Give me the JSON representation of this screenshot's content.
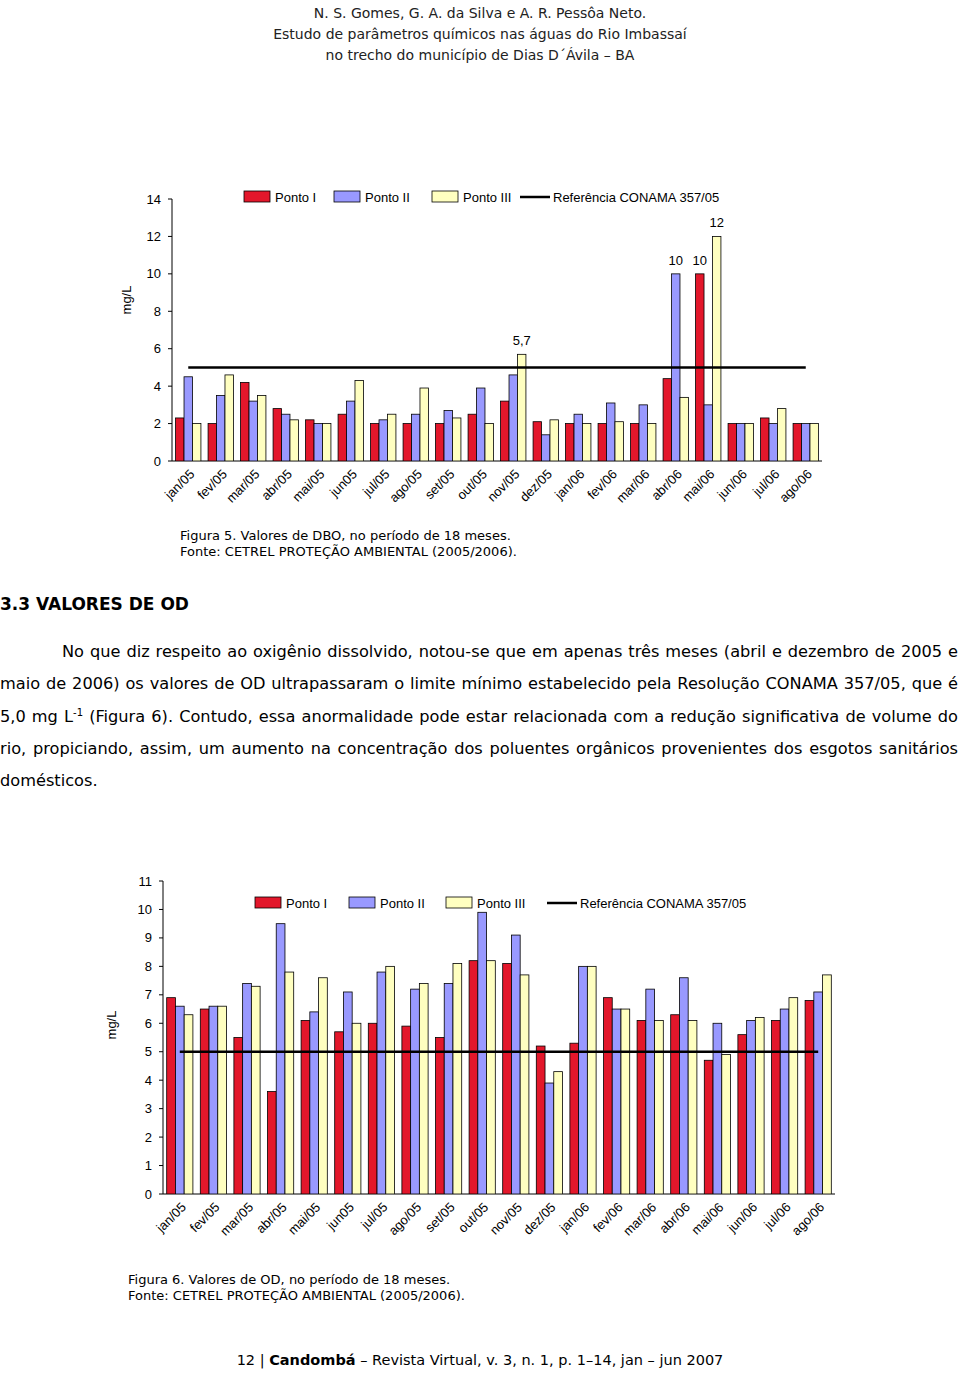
{
  "header": {
    "authors": "N. S. Gomes, G. A. da Silva e A. R. Pessôa Neto.",
    "title_line1": "Estudo de parâmetros químicos nas águas do Rio Imbassaí",
    "title_line2": "no trecho do município de Dias D´Ávila – BA"
  },
  "chart_data": [
    {
      "type": "bar",
      "title": "Figura 5. Valores de DBO, no período de 18 meses.",
      "subtitle": "Fonte: CETREL PROTEÇÃO AMBIENTAL (2005/2006).",
      "ylabel": "mg/L",
      "categories": [
        "jan/05",
        "fev/05",
        "mar/05",
        "abr/05",
        "mai/05",
        "jun05",
        "jul/05",
        "ago/05",
        "set/05",
        "out/05",
        "nov/05",
        "dez/05",
        "jan/06",
        "fev/06",
        "mar/06",
        "abr/06",
        "mai/06",
        "jun/06",
        "jul/06",
        "ago/06"
      ],
      "series": [
        {
          "name": "Ponto I",
          "color": "#e3172b",
          "values": [
            2.3,
            2.0,
            4.2,
            2.8,
            2.2,
            2.5,
            2.0,
            2.0,
            2.0,
            2.5,
            3.2,
            2.1,
            2.0,
            2.0,
            2.0,
            4.4,
            10,
            2.0,
            2.3,
            2.0
          ],
          "value_labels": [
            null,
            null,
            null,
            null,
            null,
            null,
            null,
            null,
            null,
            null,
            null,
            null,
            null,
            null,
            null,
            null,
            "10",
            null,
            null,
            null
          ]
        },
        {
          "name": "Ponto II",
          "color": "#9999ff",
          "values": [
            4.5,
            3.5,
            3.2,
            2.5,
            2.0,
            3.2,
            2.2,
            2.5,
            2.7,
            3.9,
            4.6,
            1.4,
            2.5,
            3.1,
            3.0,
            10,
            3.0,
            2.0,
            2.0,
            2.0
          ],
          "value_labels": [
            null,
            null,
            null,
            null,
            null,
            null,
            null,
            null,
            null,
            null,
            null,
            null,
            null,
            null,
            null,
            "10",
            null,
            null,
            null,
            null
          ]
        },
        {
          "name": "Ponto III",
          "color": "#ffffc0",
          "values": [
            2.0,
            4.6,
            3.5,
            2.2,
            2.0,
            4.3,
            2.5,
            3.9,
            2.3,
            2.0,
            5.7,
            2.2,
            2.0,
            2.1,
            2.0,
            3.4,
            12,
            2.0,
            2.8,
            2.0
          ],
          "value_labels": [
            null,
            null,
            null,
            null,
            null,
            null,
            null,
            null,
            null,
            null,
            "5,7",
            null,
            null,
            null,
            null,
            null,
            "12",
            null,
            null,
            null
          ]
        },
        {
          "name": "Referência CONAMA 357/05",
          "color": "#000000",
          "type": "line",
          "values": [
            5,
            5,
            5,
            5,
            5,
            5,
            5,
            5,
            5,
            5,
            5,
            5,
            5,
            5,
            5,
            5,
            5,
            5,
            5,
            5
          ]
        }
      ],
      "ylim": [
        0,
        14
      ],
      "yticks": [
        0,
        2,
        4,
        6,
        8,
        10,
        12,
        14
      ]
    },
    {
      "type": "bar",
      "title": "Figura 6. Valores de OD, no período de 18 meses.",
      "subtitle": "Fonte: CETREL PROTEÇÃO AMBIENTAL (2005/2006).",
      "ylabel": "mg/L",
      "categories": [
        "jan/05",
        "fev/05",
        "mar/05",
        "abr/05",
        "mai/05",
        "jun05",
        "jul/05",
        "ago/05",
        "set/05",
        "out/05",
        "nov/05",
        "dez/05",
        "jan/06",
        "fev/06",
        "mar/06",
        "abr/06",
        "mai/06",
        "jun/06",
        "jul/06",
        "ago/06"
      ],
      "series": [
        {
          "name": "Ponto I",
          "color": "#e3172b",
          "values": [
            6.9,
            6.5,
            5.5,
            3.6,
            6.1,
            5.7,
            6.0,
            5.9,
            5.5,
            8.2,
            8.1,
            5.2,
            5.3,
            6.9,
            6.1,
            6.3,
            4.7,
            5.6,
            6.1,
            6.8
          ]
        },
        {
          "name": "Ponto II",
          "color": "#9999ff",
          "values": [
            6.6,
            6.6,
            7.4,
            9.5,
            6.4,
            7.1,
            7.8,
            7.2,
            7.4,
            9.9,
            9.1,
            3.9,
            8.0,
            6.5,
            7.2,
            7.6,
            6.0,
            6.1,
            6.5,
            7.1
          ]
        },
        {
          "name": "Ponto III",
          "color": "#ffffc0",
          "values": [
            6.3,
            6.6,
            7.3,
            7.8,
            7.6,
            6.0,
            8.0,
            7.4,
            8.1,
            8.2,
            7.7,
            4.3,
            8.0,
            6.5,
            6.1,
            6.1,
            4.9,
            6.2,
            6.9,
            7.7
          ]
        },
        {
          "name": "Referência CONAMA 357/05",
          "color": "#000000",
          "type": "line",
          "values": [
            5,
            5,
            5,
            5,
            5,
            5,
            5,
            5,
            5,
            5,
            5,
            5,
            5,
            5,
            5,
            5,
            5,
            5,
            5,
            5
          ]
        }
      ],
      "ylim": [
        0,
        11
      ],
      "yticks": [
        0,
        1,
        2,
        3,
        4,
        5,
        6,
        7,
        8,
        9,
        10,
        11
      ]
    }
  ],
  "section": {
    "heading": "3.3 VALORES DE OD",
    "paragraph": {
      "text_before": "No que diz respeito ao oxigênio dissolvido, notou-se que em apenas três meses (abril e dezembro de 2005 e maio de 2006) os valores de OD ultrapassaram o limite mínimo estabelecido pela Resolução CONAMA 357/05, que é 5,0 mg L",
      "superscript": "-1",
      "text_after": " (Figura 6). Contudo, essa anormalidade pode estar relacionada com a redução significativa de volume do rio, propiciando, assim, um aumento na concentração dos poluentes orgânicos provenientes dos esgotos sanitários domésticos."
    }
  },
  "footer": {
    "page": "12",
    "separator": "|",
    "journal": "Candombá",
    "details": "– Revista Virtual, v. 3, n. 1, p. 1–14, jan – jun 2007"
  }
}
